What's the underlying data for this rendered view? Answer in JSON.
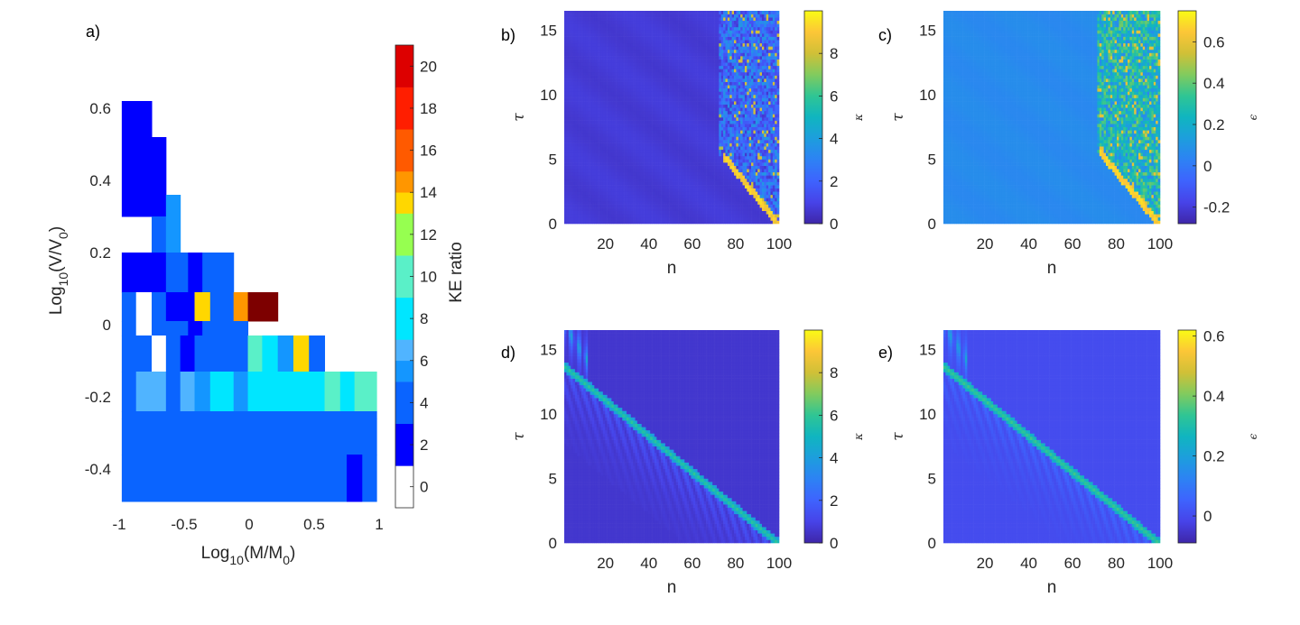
{
  "figure": {
    "panel_labels": [
      "a)",
      "b)",
      "c)",
      "d)",
      "e)"
    ]
  },
  "chart_data": [
    {
      "id": "a",
      "type": "heatmap",
      "title": "",
      "xlabel": "Log10(M/M0)",
      "xlabel_parts": {
        "pre": "Log",
        "sub1": "10",
        "mid": "(M/M",
        "sub2": "0",
        "post": ")"
      },
      "ylabel": "Log10(V/V0)",
      "ylabel_parts": {
        "pre": "Log",
        "sub1": "10",
        "mid": "(V/V",
        "sub2": "0",
        "post": ")"
      },
      "xlim": [
        -1,
        1
      ],
      "ylim": [
        -0.5,
        0.65
      ],
      "xticks": [
        -1,
        -0.5,
        0,
        0.5,
        1
      ],
      "xtick_labels": [
        "-1",
        "-0.5",
        "0",
        "0.5",
        "1"
      ],
      "yticks": [
        -0.4,
        -0.2,
        0,
        0.2,
        0.4,
        0.6
      ],
      "ytick_labels": [
        "-0.4",
        "-0.2",
        "0",
        "0.2",
        "0.4",
        "0.6"
      ],
      "colorbar": {
        "label": "KE ratio",
        "range": [
          -1,
          21
        ],
        "ticks": [
          0,
          2,
          4,
          6,
          8,
          10,
          12,
          14,
          16,
          18,
          20
        ],
        "tick_labels": [
          "0",
          "2",
          "4",
          "6",
          "8",
          "10",
          "12",
          "14",
          "16",
          "18",
          "20"
        ],
        "colors": [
          "#ffffff",
          "#0000ff",
          "#0a64ff",
          "#1496ff",
          "#50b4ff",
          "#00e6ff",
          "#5af0c8",
          "#96ff50",
          "#ffd700",
          "#ff9600",
          "#ff5a00",
          "#ff1e00",
          "#dd0000",
          "#7d0000"
        ],
        "levels": [
          -1,
          1,
          3,
          5,
          6,
          7,
          9,
          11,
          13,
          14,
          15,
          17,
          19,
          21
        ]
      },
      "cells": [
        {
          "x0": -0.98,
          "x1": -0.75,
          "y0": 0.3,
          "y1": 0.62,
          "v": 2
        },
        {
          "x0": -0.75,
          "x1": -0.64,
          "y0": 0.3,
          "y1": 0.52,
          "v": 2
        },
        {
          "x0": -0.75,
          "x1": -0.64,
          "y0": 0.2,
          "y1": 0.3,
          "v": 4
        },
        {
          "x0": -0.64,
          "x1": -0.53,
          "y0": 0.2,
          "y1": 0.36,
          "v": 5
        },
        {
          "x0": -0.98,
          "x1": -0.64,
          "y0": 0.09,
          "y1": 0.2,
          "v": 2
        },
        {
          "x0": -0.64,
          "x1": -0.47,
          "y0": 0.09,
          "y1": 0.2,
          "v": 4
        },
        {
          "x0": -0.47,
          "x1": -0.36,
          "y0": 0.09,
          "y1": 0.2,
          "v": 2
        },
        {
          "x0": -0.36,
          "x1": -0.12,
          "y0": 0.09,
          "y1": 0.2,
          "v": 4
        },
        {
          "x0": -0.98,
          "x1": -0.87,
          "y0": 0.01,
          "y1": 0.09,
          "v": 4
        },
        {
          "x0": -0.87,
          "x1": -0.75,
          "y0": 0.01,
          "y1": 0.09,
          "v": 0
        },
        {
          "x0": -0.75,
          "x1": -0.64,
          "y0": 0.01,
          "y1": 0.09,
          "v": 4
        },
        {
          "x0": -0.64,
          "x1": -0.42,
          "y0": 0.01,
          "y1": 0.09,
          "v": 2
        },
        {
          "x0": -0.42,
          "x1": -0.3,
          "y0": 0.01,
          "y1": 0.09,
          "v": 13
        },
        {
          "x0": -0.3,
          "x1": -0.12,
          "y0": 0.01,
          "y1": 0.09,
          "v": 3
        },
        {
          "x0": -0.12,
          "x1": -0.01,
          "y0": 0.01,
          "y1": 0.09,
          "v": 14
        },
        {
          "x0": -0.01,
          "x1": 0.22,
          "y0": 0.01,
          "y1": 0.09,
          "v": 21
        },
        {
          "x0": -0.98,
          "x1": -0.87,
          "y0": -0.03,
          "y1": 0.01,
          "v": 3
        },
        {
          "x0": -0.87,
          "x1": -0.75,
          "y0": -0.03,
          "y1": 0.01,
          "v": 0
        },
        {
          "x0": -0.75,
          "x1": -0.47,
          "y0": -0.03,
          "y1": 0.01,
          "v": 3
        },
        {
          "x0": -0.47,
          "x1": -0.36,
          "y0": -0.03,
          "y1": 0.01,
          "v": 2
        },
        {
          "x0": -0.36,
          "x1": -0.01,
          "y0": -0.03,
          "y1": 0.01,
          "v": 3
        },
        {
          "x0": -0.98,
          "x1": -0.87,
          "y0": -0.13,
          "y1": -0.03,
          "v": 3
        },
        {
          "x0": -0.87,
          "x1": -0.75,
          "y0": -0.13,
          "y1": -0.03,
          "v": 4
        },
        {
          "x0": -0.75,
          "x1": -0.64,
          "y0": -0.13,
          "y1": -0.03,
          "v": 0
        },
        {
          "x0": -0.64,
          "x1": -0.53,
          "y0": -0.13,
          "y1": -0.03,
          "v": 4
        },
        {
          "x0": -0.53,
          "x1": -0.42,
          "y0": -0.13,
          "y1": -0.03,
          "v": 2
        },
        {
          "x0": -0.42,
          "x1": -0.01,
          "y0": -0.13,
          "y1": -0.03,
          "v": 3
        },
        {
          "x0": -0.01,
          "x1": 0.1,
          "y0": -0.13,
          "y1": -0.03,
          "v": 9
        },
        {
          "x0": 0.1,
          "x1": 0.22,
          "y0": -0.13,
          "y1": -0.03,
          "v": 8
        },
        {
          "x0": 0.22,
          "x1": 0.34,
          "y0": -0.13,
          "y1": -0.03,
          "v": 5
        },
        {
          "x0": 0.34,
          "x1": 0.46,
          "y0": -0.13,
          "y1": -0.03,
          "v": 13
        },
        {
          "x0": 0.46,
          "x1": 0.58,
          "y0": -0.13,
          "y1": -0.03,
          "v": 4
        },
        {
          "x0": -0.98,
          "x1": -0.87,
          "y0": -0.24,
          "y1": -0.13,
          "v": 3
        },
        {
          "x0": -0.87,
          "x1": -0.64,
          "y0": -0.24,
          "y1": -0.13,
          "v": 6
        },
        {
          "x0": -0.64,
          "x1": -0.53,
          "y0": -0.24,
          "y1": -0.13,
          "v": 4
        },
        {
          "x0": -0.53,
          "x1": -0.42,
          "y0": -0.24,
          "y1": -0.13,
          "v": 6
        },
        {
          "x0": -0.42,
          "x1": -0.3,
          "y0": -0.24,
          "y1": -0.13,
          "v": 5
        },
        {
          "x0": -0.3,
          "x1": -0.12,
          "y0": -0.24,
          "y1": -0.13,
          "v": 7
        },
        {
          "x0": -0.12,
          "x1": -0.01,
          "y0": -0.24,
          "y1": -0.13,
          "v": 5
        },
        {
          "x0": -0.01,
          "x1": 0.22,
          "y0": -0.24,
          "y1": -0.13,
          "v": 7
        },
        {
          "x0": 0.22,
          "x1": 0.34,
          "y0": -0.24,
          "y1": -0.13,
          "v": 8
        },
        {
          "x0": 0.34,
          "x1": 0.46,
          "y0": -0.24,
          "y1": -0.13,
          "v": 7
        },
        {
          "x0": 0.46,
          "x1": 0.58,
          "y0": -0.24,
          "y1": -0.13,
          "v": 8
        },
        {
          "x0": 0.58,
          "x1": 0.7,
          "y0": -0.24,
          "y1": -0.13,
          "v": 9
        },
        {
          "x0": 0.7,
          "x1": 0.81,
          "y0": -0.24,
          "y1": -0.13,
          "v": 8
        },
        {
          "x0": 0.81,
          "x1": 0.98,
          "y0": -0.24,
          "y1": -0.13,
          "v": 10
        },
        {
          "x0": -0.98,
          "x1": -0.64,
          "y0": -0.26,
          "y1": -0.24,
          "v": 3
        },
        {
          "x0": -0.64,
          "x1": 0.98,
          "y0": -0.26,
          "y1": -0.24,
          "v": 3
        },
        {
          "x0": -0.98,
          "x1": -0.75,
          "y0": -0.36,
          "y1": -0.26,
          "v": 3
        },
        {
          "x0": -0.75,
          "x1": 0.98,
          "y0": -0.36,
          "y1": -0.26,
          "v": 4
        },
        {
          "x0": -0.98,
          "x1": 0.75,
          "y0": -0.49,
          "y1": -0.36,
          "v": 3
        },
        {
          "x0": 0.75,
          "x1": 0.87,
          "y0": -0.49,
          "y1": -0.36,
          "v": 2
        },
        {
          "x0": 0.87,
          "x1": 0.98,
          "y0": -0.49,
          "y1": -0.36,
          "v": 3
        }
      ]
    },
    {
      "id": "b",
      "type": "heatmap",
      "title": "",
      "xlabel": "n",
      "ylabel": "τ",
      "xlim": [
        1,
        100
      ],
      "ylim": [
        0,
        16.5
      ],
      "xticks": [
        20,
        40,
        60,
        80,
        100
      ],
      "xtick_labels": [
        "20",
        "40",
        "60",
        "80",
        "100"
      ],
      "yticks": [
        0,
        5,
        10,
        15
      ],
      "ytick_labels": [
        "0",
        "5",
        "10",
        "15"
      ],
      "colorbar": {
        "label": "κ",
        "range": [
          0,
          10
        ],
        "ticks": [
          0,
          2,
          4,
          6,
          8
        ],
        "tick_labels": [
          "0",
          "2",
          "4",
          "6",
          "8"
        ]
      },
      "background_value": 0.6,
      "pattern": "front",
      "front": {
        "n_start": 100,
        "tau_start": 0,
        "n_end": 75,
        "tau_end": 5.2,
        "peak": 9.5,
        "chaos_n_from": 73,
        "chaos_level": 3.5
      }
    },
    {
      "id": "c",
      "type": "heatmap",
      "title": "",
      "xlabel": "n",
      "ylabel": "τ",
      "xlim": [
        1,
        100
      ],
      "ylim": [
        0,
        16.5
      ],
      "xticks": [
        20,
        40,
        60,
        80,
        100
      ],
      "xtick_labels": [
        "20",
        "40",
        "60",
        "80",
        "100"
      ],
      "yticks": [
        0,
        5,
        10,
        15
      ],
      "ytick_labels": [
        "0",
        "5",
        "10",
        "15"
      ],
      "colorbar": {
        "label": "ϵ",
        "range": [
          -0.28,
          0.75
        ],
        "ticks": [
          -0.2,
          0,
          0.2,
          0.4,
          0.6
        ],
        "tick_labels": [
          "-0.2",
          "0",
          "0.2",
          "0.4",
          "0.6"
        ]
      },
      "background_value": 0.05,
      "pattern": "front",
      "front": {
        "n_start": 100,
        "tau_start": 0,
        "n_end": 73,
        "tau_end": 5.5,
        "peak": 0.7,
        "chaos_n_from": 72,
        "chaos_level": 0.4
      }
    },
    {
      "id": "d",
      "type": "heatmap",
      "title": "",
      "xlabel": "n",
      "ylabel": "τ",
      "xlim": [
        1,
        100
      ],
      "ylim": [
        0,
        16.5
      ],
      "xticks": [
        20,
        40,
        60,
        80,
        100
      ],
      "xtick_labels": [
        "20",
        "40",
        "60",
        "80",
        "100"
      ],
      "yticks": [
        0,
        5,
        10,
        15
      ],
      "ytick_labels": [
        "0",
        "5",
        "10",
        "15"
      ],
      "colorbar": {
        "label": "κ",
        "range": [
          0,
          10
        ],
        "ticks": [
          0,
          2,
          4,
          6,
          8
        ],
        "tick_labels": [
          "0",
          "2",
          "4",
          "6",
          "8"
        ]
      },
      "background_value": 0.6,
      "pattern": "soliton",
      "front": {
        "n_start": 100,
        "tau_start": 0,
        "n_end": 2,
        "tau_end": 13.5,
        "peak": 6.0
      }
    },
    {
      "id": "e",
      "type": "heatmap",
      "title": "",
      "xlabel": "n",
      "ylabel": "τ",
      "xlim": [
        1,
        100
      ],
      "ylim": [
        0,
        16.5
      ],
      "xticks": [
        20,
        40,
        60,
        80,
        100
      ],
      "xtick_labels": [
        "20",
        "40",
        "60",
        "80",
        "100"
      ],
      "yticks": [
        0,
        5,
        10,
        15
      ],
      "ytick_labels": [
        "0",
        "5",
        "10",
        "15"
      ],
      "colorbar": {
        "label": "ϵ",
        "range": [
          -0.09,
          0.62
        ],
        "ticks": [
          0,
          0.2,
          0.4,
          0.6
        ],
        "tick_labels": [
          "0",
          "0.2",
          "0.4",
          "0.6"
        ]
      },
      "background_value": 0.0,
      "pattern": "soliton",
      "front": {
        "n_start": 100,
        "tau_start": 0,
        "n_end": 2,
        "tau_end": 13.5,
        "peak": 0.35
      }
    }
  ]
}
